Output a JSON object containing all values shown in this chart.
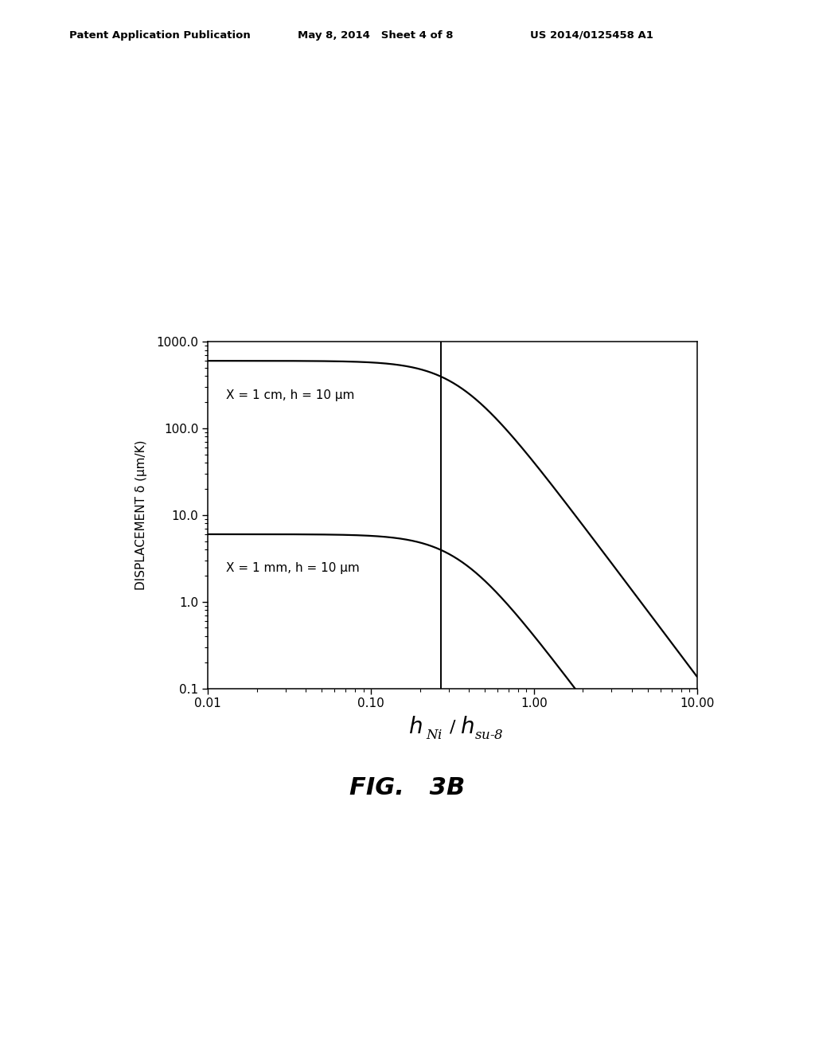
{
  "background_color": "#ffffff",
  "ylabel": "DISPLACEMENT δ (μm/K)",
  "fig_label": "FIG.   3B",
  "header_left": "Patent Application Publication",
  "header_mid": "May 8, 2014   Sheet 4 of 8",
  "header_right": "US 2014/0125458 A1",
  "curve1_label": "X = 1 cm, h = 10 μm",
  "curve2_label": "X = 1 mm, h = 10 μm",
  "xmin": 0.01,
  "xmax": 10.0,
  "ymin": 0.1,
  "ymax": 1000.0,
  "vline_x": 0.27,
  "line_color": "#000000",
  "curve_linewidth": 1.6,
  "vline_linewidth": 1.4,
  "curve1_A": 600.0,
  "curve2_A": 6.0,
  "curve_n0": 0.35,
  "curve_power": 2.5
}
